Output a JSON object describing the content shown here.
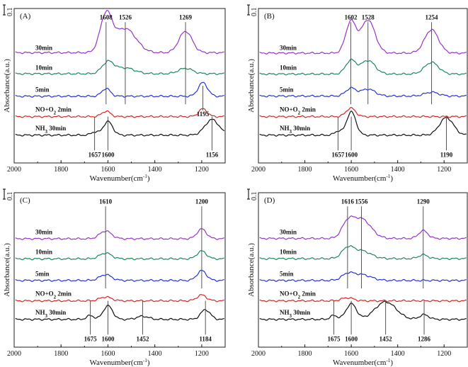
{
  "chart_data": [
    {
      "type": "line",
      "panel": "(A)",
      "xlabel": "Wavenumber(cm⁻¹)",
      "ylabel": "Absorbance(a.u.)",
      "scale_bar": "0.1",
      "xlim": [
        2000,
        1100
      ],
      "xticks": [
        "2000",
        "1800",
        "1600",
        "1400",
        "1200"
      ],
      "xtick_values": [
        2000,
        1800,
        1600,
        1400,
        1200
      ],
      "series": [
        {
          "name": "30min",
          "color": "#9933cc",
          "baseline": 0.37,
          "peaks": [
            [
              1608,
              0.95,
              25
            ],
            [
              1526,
              0.62,
              45
            ],
            [
              1269,
              0.55,
              28
            ]
          ]
        },
        {
          "name": "10min",
          "color": "#1a8a5a",
          "baseline": 0.2,
          "peaks": [
            [
              1600,
              0.3,
              25
            ],
            [
              1526,
              0.15,
              40
            ],
            [
              1269,
              0.14,
              30
            ]
          ]
        },
        {
          "name": "5min",
          "color": "#2233dd",
          "baseline": 0.05,
          "peaks": [
            [
              1608,
              0.2,
              18
            ],
            [
              1195,
              0.35,
              20
            ]
          ]
        },
        {
          "name": "NO+O₂ 2min",
          "color": "#dd2222",
          "baseline": 0.0,
          "peaks": [
            [
              1608,
              0.14,
              18
            ],
            [
              1195,
              0.2,
              18
            ]
          ]
        },
        {
          "name": "NH₃ 30min",
          "color": "#111111",
          "baseline": 0.0,
          "peaks": [
            [
              1600,
              0.35,
              20
            ],
            [
              1657,
              0.08,
              15
            ],
            [
              1156,
              0.4,
              30
            ]
          ]
        }
      ],
      "annotations": [
        {
          "label": "1608",
          "x": 1608,
          "pos": "top"
        },
        {
          "label": "1526",
          "x": 1526,
          "pos": "top"
        },
        {
          "label": "1269",
          "x": 1269,
          "pos": "top"
        },
        {
          "label": "1195",
          "x": 1195,
          "pos": "mid"
        },
        {
          "label": "1657",
          "x": 1657,
          "pos": "bottom"
        },
        {
          "label": "1600",
          "x": 1600,
          "pos": "bottom"
        },
        {
          "label": "1156",
          "x": 1156,
          "pos": "bottom"
        }
      ]
    },
    {
      "type": "line",
      "panel": "(B)",
      "xlabel": "Wavenumber(cm⁻¹)",
      "ylabel": "Absorbance(a.u.)",
      "scale_bar": "0.1",
      "xlim": [
        2000,
        1100
      ],
      "xticks": [
        "2000",
        "1800",
        "1600",
        "1400",
        "1200"
      ],
      "xtick_values": [
        2000,
        1800,
        1600,
        1400,
        1200
      ],
      "series": [
        {
          "name": "30min",
          "color": "#9933cc",
          "baseline": 0.3,
          "peaks": [
            [
              1602,
              0.8,
              22
            ],
            [
              1528,
              0.85,
              30
            ],
            [
              1254,
              0.6,
              30
            ]
          ]
        },
        {
          "name": "10min",
          "color": "#1a8a5a",
          "baseline": 0.15,
          "peaks": [
            [
              1602,
              0.35,
              22
            ],
            [
              1528,
              0.35,
              30
            ],
            [
              1254,
              0.3,
              30
            ]
          ]
        },
        {
          "name": "5min",
          "color": "#2233dd",
          "baseline": 0.08,
          "peaks": [
            [
              1602,
              0.2,
              22
            ],
            [
              1528,
              0.18,
              30
            ],
            [
              1254,
              0.1,
              30
            ]
          ]
        },
        {
          "name": "NO+O₂ 2min",
          "color": "#dd2222",
          "baseline": 0.0,
          "peaks": [
            [
              1602,
              0.22,
              20
            ]
          ]
        },
        {
          "name": "NH₃ 30min",
          "color": "#111111",
          "baseline": 0.0,
          "peaks": [
            [
              1600,
              0.6,
              20
            ],
            [
              1657,
              0.1,
              15
            ],
            [
              1190,
              0.45,
              30
            ]
          ]
        }
      ],
      "annotations": [
        {
          "label": "1602",
          "x": 1602,
          "pos": "top"
        },
        {
          "label": "1528",
          "x": 1528,
          "pos": "top"
        },
        {
          "label": "1254",
          "x": 1254,
          "pos": "top"
        },
        {
          "label": "1657",
          "x": 1657,
          "pos": "bottom"
        },
        {
          "label": "1600",
          "x": 1600,
          "pos": "bottom"
        },
        {
          "label": "1190",
          "x": 1190,
          "pos": "bottom"
        }
      ]
    },
    {
      "type": "line",
      "panel": "(C)",
      "xlabel": "Wavenumber(cm⁻¹)",
      "ylabel": "Absorbance(a.u.)",
      "scale_bar": "0.1",
      "xlim": [
        2000,
        1100
      ],
      "xticks": [
        "2000",
        "1800",
        "1600",
        "1400",
        "1200"
      ],
      "xtick_values": [
        2000,
        1800,
        1600,
        1400,
        1200
      ],
      "series": [
        {
          "name": "30min",
          "color": "#9933cc",
          "baseline": 0.05,
          "peaks": [
            [
              1610,
              0.2,
              25
            ],
            [
              1200,
              0.25,
              20
            ]
          ]
        },
        {
          "name": "10min",
          "color": "#1a8a5a",
          "baseline": 0.05,
          "peaks": [
            [
              1610,
              0.15,
              25
            ],
            [
              1200,
              0.2,
              20
            ]
          ]
        },
        {
          "name": "5min",
          "color": "#2233dd",
          "baseline": 0.05,
          "peaks": [
            [
              1610,
              0.15,
              25
            ],
            [
              1200,
              0.25,
              20
            ]
          ]
        },
        {
          "name": "NO+O₂ 2min",
          "color": "#dd2222",
          "baseline": 0.0,
          "peaks": [
            [
              1610,
              0.1,
              25
            ],
            [
              1200,
              0.15,
              20
            ]
          ]
        },
        {
          "name": "NH₃ 30min",
          "color": "#111111",
          "baseline": 0.0,
          "peaks": [
            [
              1600,
              0.35,
              20
            ],
            [
              1675,
              0.1,
              15
            ],
            [
              1452,
              0.08,
              25
            ],
            [
              1184,
              0.25,
              20
            ]
          ]
        }
      ],
      "annotations": [
        {
          "label": "1610",
          "x": 1610,
          "pos": "top"
        },
        {
          "label": "1200",
          "x": 1200,
          "pos": "top"
        },
        {
          "label": "1675",
          "x": 1675,
          "pos": "bottom"
        },
        {
          "label": "1600",
          "x": 1600,
          "pos": "bottom"
        },
        {
          "label": "1452",
          "x": 1452,
          "pos": "bottom"
        },
        {
          "label": "1184",
          "x": 1184,
          "pos": "bottom"
        }
      ]
    },
    {
      "type": "line",
      "panel": "(D)",
      "xlabel": "Wavenumber(cm⁻¹)",
      "ylabel": "Absorbance(a.u.)",
      "scale_bar": "0.1",
      "xlim": [
        2000,
        1100
      ],
      "xticks": [
        "2000",
        "1800",
        "1600",
        "1400",
        "1200"
      ],
      "xtick_values": [
        2000,
        1800,
        1600,
        1400,
        1200
      ],
      "series": [
        {
          "name": "30min",
          "color": "#9933cc",
          "baseline": 0.1,
          "peaks": [
            [
              1616,
              0.35,
              25
            ],
            [
              1556,
              0.5,
              40
            ],
            [
              1290,
              0.2,
              20
            ]
          ]
        },
        {
          "name": "10min",
          "color": "#1a8a5a",
          "baseline": 0.08,
          "peaks": [
            [
              1616,
              0.25,
              25
            ],
            [
              1556,
              0.2,
              40
            ],
            [
              1290,
              0.1,
              20
            ]
          ]
        },
        {
          "name": "5min",
          "color": "#2233dd",
          "baseline": 0.05,
          "peaks": [
            [
              1616,
              0.15,
              25
            ],
            [
              1556,
              0.15,
              40
            ]
          ]
        },
        {
          "name": "NO+O₂ 2min",
          "color": "#dd2222",
          "baseline": 0.0,
          "peaks": [
            [
              1616,
              0.08,
              25
            ]
          ]
        },
        {
          "name": "NH₃ 30min",
          "color": "#111111",
          "baseline": 0.0,
          "peaks": [
            [
              1600,
              0.4,
              22
            ],
            [
              1675,
              0.1,
              15
            ],
            [
              1452,
              0.45,
              45
            ],
            [
              1286,
              0.12,
              20
            ]
          ]
        }
      ],
      "annotations": [
        {
          "label": "1616",
          "x": 1616,
          "pos": "top"
        },
        {
          "label": "1556",
          "x": 1556,
          "pos": "top"
        },
        {
          "label": "1290",
          "x": 1290,
          "pos": "top"
        },
        {
          "label": "1675",
          "x": 1675,
          "pos": "bottom"
        },
        {
          "label": "1600",
          "x": 1600,
          "pos": "bottom"
        },
        {
          "label": "1452",
          "x": 1452,
          "pos": "bottom"
        },
        {
          "label": "1286",
          "x": 1286,
          "pos": "bottom"
        }
      ]
    }
  ]
}
